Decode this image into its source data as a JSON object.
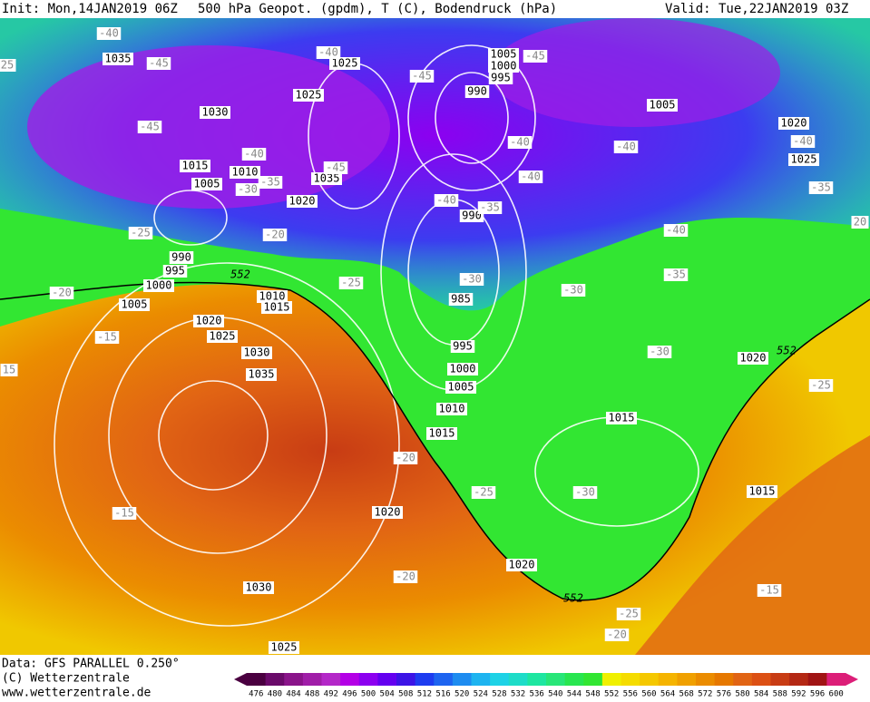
{
  "header": {
    "init": "Init: Mon,14JAN2019 06Z",
    "title": "500 hPa Geopot. (gpdm), T (C), Bodendruck (hPa)",
    "valid": "Valid: Tue,22JAN2019 03Z"
  },
  "footer": {
    "data": "Data: GFS PARALLEL 0.250°",
    "copyright": "(C) Wetterzentrale",
    "url": "www.wetterzentrale.de"
  },
  "pressure_labels": [
    "1035",
    "1025",
    "1025",
    "1030",
    "1015",
    "1010",
    "1005",
    "1035",
    "1020",
    "1005",
    "1000",
    "995",
    "990",
    "1005",
    "1020",
    "1025",
    "990",
    "990",
    "995",
    "1000",
    "1005",
    "1010",
    "1015",
    "1020",
    "1025",
    "1030",
    "1035",
    "985",
    "995",
    "1000",
    "1005",
    "1010",
    "1015",
    "1020",
    "1020",
    "1030",
    "1025",
    "1015",
    "1015",
    "1020"
  ],
  "temperature_labels": [
    "-40",
    "-45",
    "-40",
    "-45",
    "-45",
    "-45",
    "-40",
    "-45",
    "-30",
    "-35",
    "-40",
    "-40",
    "-40",
    "-35",
    "-40",
    "-40",
    "-35",
    "-40",
    "-25",
    "-20",
    "-30",
    "-25",
    "-30",
    "-35",
    "-20",
    "-15",
    "15",
    "-30",
    "-25",
    "-20",
    "-25",
    "-30",
    "-15",
    "-20",
    "-25",
    "-20",
    "-15",
    "25",
    "20"
  ],
  "geopotential_labels": [
    "552",
    "552",
    "552"
  ],
  "colorbar": {
    "ticks": [
      476,
      480,
      484,
      488,
      492,
      496,
      500,
      504,
      508,
      512,
      516,
      520,
      524,
      528,
      532,
      536,
      540,
      544,
      548,
      552,
      556,
      560,
      564,
      568,
      572,
      576,
      580,
      584,
      588,
      592,
      596,
      600
    ],
    "colors": [
      "#4a0040",
      "#6a0a6a",
      "#8a148a",
      "#a01ea8",
      "#b428c8",
      "#b400e6",
      "#8c00f0",
      "#6400f0",
      "#3c14e6",
      "#1e3cf0",
      "#1e64f0",
      "#1e8cf0",
      "#1eb4f0",
      "#1ed2e6",
      "#1edcc8",
      "#1ee6a0",
      "#28e678",
      "#28e650",
      "#32e632",
      "#f0f000",
      "#f5dc00",
      "#f5c800",
      "#f5b400",
      "#f0a000",
      "#eb8c00",
      "#e67800",
      "#e16414",
      "#dc5014",
      "#c83c14",
      "#b42814",
      "#a01414",
      "#dc1e78"
    ]
  }
}
